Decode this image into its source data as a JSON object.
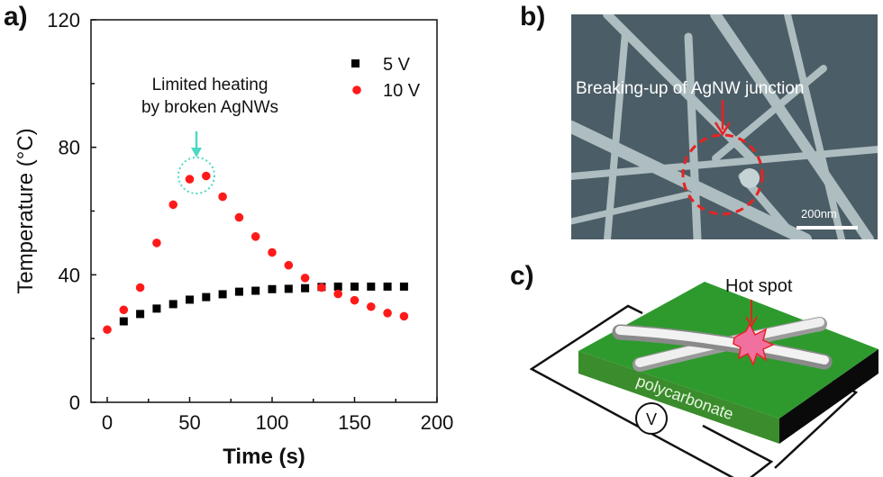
{
  "panels": {
    "a": {
      "label": "a)"
    },
    "b": {
      "label": "b)",
      "annotation": "Breaking-up of AgNW junction",
      "scale_bar": "200nm"
    },
    "c": {
      "label": "c)",
      "annotation": "Hot spot",
      "substrate_label": "polycarbonate",
      "source_symbol": "V"
    }
  },
  "colors": {
    "series_5v": "#000000",
    "series_10v": "#ff1a1a",
    "annotation": "#4fd8c4",
    "substrate": "#2e9a2e",
    "hotspot": "#f070a0"
  },
  "chart_data": {
    "type": "scatter",
    "title": "",
    "xlabel": "Time (s)",
    "ylabel": "Temperature (°C)",
    "xlim": [
      -10,
      200
    ],
    "ylim": [
      0,
      120
    ],
    "xticks": [
      0,
      50,
      100,
      150,
      200
    ],
    "yticks": [
      0,
      40,
      80,
      120
    ],
    "grid": false,
    "legend_position": "upper right",
    "annotations": [
      {
        "text_lines": [
          "Limited heating",
          "by broken AgNWs"
        ],
        "x": 55,
        "y": 71
      }
    ],
    "series": [
      {
        "name": "5 V",
        "marker": "square",
        "x": [
          10,
          20,
          30,
          40,
          50,
          60,
          70,
          80,
          90,
          100,
          110,
          120,
          130,
          140,
          150,
          160,
          170,
          180
        ],
        "values": [
          25.4,
          27.7,
          29.4,
          30.8,
          32.2,
          33,
          33.9,
          34.7,
          35,
          35.5,
          35.6,
          35.8,
          36.2,
          36.3,
          36.3,
          36.3,
          36.3,
          36.3
        ]
      },
      {
        "name": "10 V",
        "marker": "circle",
        "x": [
          0,
          10,
          20,
          30,
          40,
          50,
          60,
          70,
          80,
          90,
          100,
          110,
          120,
          130,
          140,
          150,
          160,
          170,
          180
        ],
        "values": [
          22.8,
          29,
          36,
          50,
          62,
          70,
          71,
          64.5,
          58,
          52,
          47,
          43,
          39,
          36,
          34,
          32,
          30,
          28,
          27
        ]
      }
    ]
  }
}
